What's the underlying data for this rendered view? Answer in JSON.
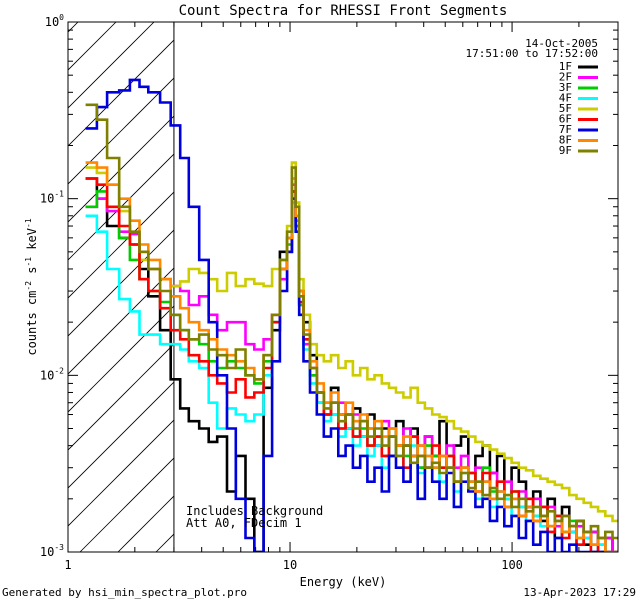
{
  "chart_data": {
    "type": "line",
    "title": "Count Spectra for RHESSI Front Segments",
    "xlabel": "Energy (keV)",
    "ylabel_parts": {
      "base": "counts cm",
      "exp1": "-2",
      "mid": " s",
      "exp2": "-1",
      "tail": " keV",
      "exp3": "-1"
    },
    "xscale": "log",
    "yscale": "log",
    "xlim": [
      1,
      300
    ],
    "ylim": [
      0.001,
      1
    ],
    "x_ticks": [
      {
        "v": 1,
        "label": "1"
      },
      {
        "v": 10,
        "label": "10"
      },
      {
        "v": 100,
        "label": "100"
      }
    ],
    "y_ticks": [
      {
        "v": 1,
        "base": "10",
        "exp": "0"
      },
      {
        "v": 0.1,
        "base": "10",
        "exp": "-1"
      },
      {
        "v": 0.01,
        "base": "10",
        "exp": "-2"
      },
      {
        "v": 0.001,
        "base": "10",
        "exp": "-3"
      }
    ],
    "date": "14-Oct-2005",
    "time_range": "17:51:00 to 17:52:00",
    "shaded_below_keV": 3,
    "annotations": [
      "Includes Background",
      "Att A0, FDecim 1"
    ],
    "footer_left": "Generated by hsi_min_spectra_plot.pro",
    "footer_right": "13-Apr-2023 17:29",
    "energy_edges_keV": [
      1.2,
      1.35,
      1.5,
      1.7,
      1.9,
      2.1,
      2.3,
      2.6,
      2.9,
      3.2,
      3.5,
      3.9,
      4.3,
      4.7,
      5.2,
      5.7,
      6.3,
      6.9,
      7.6,
      8.3,
      9.0,
      9.7,
      10.2,
      10.6,
      11.0,
      11.5,
      12.3,
      13.2,
      14.2,
      15.3,
      16.5,
      17.8,
      19.2,
      20.7,
      22.3,
      24.0,
      25.9,
      27.9,
      30.0,
      32.4,
      34.9,
      37.6,
      40.5,
      43.7,
      47.1,
      50.7,
      54.7,
      58.9,
      63.5,
      68.4,
      73.7,
      79.5,
      85.6,
      92.3,
      99.5,
      107.2,
      115.5,
      124.5,
      134.2,
      144.6,
      155.8,
      167.9,
      181.0,
      195.0,
      210.2,
      226.5,
      244.1,
      263.0,
      283.5,
      300.0
    ],
    "series": [
      {
        "name": "1F",
        "color": "#000000",
        "values": [
          0.13,
          0.1,
          0.07,
          0.06,
          0.055,
          0.04,
          0.028,
          0.018,
          0.0095,
          0.0065,
          0.0055,
          0.005,
          0.0042,
          0.0045,
          0.0022,
          0.0035,
          0.002,
          0.001,
          0.0085,
          0.018,
          0.05,
          0.06,
          0.11,
          0.08,
          0.03,
          0.02,
          0.013,
          0.007,
          0.006,
          0.0085,
          0.006,
          0.005,
          0.0065,
          0.0045,
          0.006,
          0.004,
          0.005,
          0.0035,
          0.0055,
          0.004,
          0.005,
          0.003,
          0.0045,
          0.0035,
          0.0055,
          0.003,
          0.004,
          0.0045,
          0.0025,
          0.0035,
          0.004,
          0.0028,
          0.0035,
          0.002,
          0.003,
          0.0025,
          0.0018,
          0.0022,
          0.0015,
          0.002,
          0.0012,
          0.0018,
          0.0013,
          0.0015,
          0.0011,
          0.0013,
          0.001,
          0.0012,
          0.001
        ]
      },
      {
        "name": "2F",
        "color": "#ff00ff",
        "values": [
          0.09,
          0.1,
          0.085,
          0.065,
          0.063,
          0.05,
          0.04,
          0.035,
          0.032,
          0.03,
          0.025,
          0.028,
          0.022,
          0.018,
          0.02,
          0.02,
          0.015,
          0.014,
          0.016,
          0.022,
          0.035,
          0.05,
          0.12,
          0.075,
          0.025,
          0.015,
          0.01,
          0.008,
          0.007,
          0.006,
          0.007,
          0.005,
          0.006,
          0.0045,
          0.005,
          0.004,
          0.0055,
          0.0045,
          0.004,
          0.005,
          0.0035,
          0.004,
          0.0045,
          0.003,
          0.0035,
          0.004,
          0.003,
          0.0035,
          0.0028,
          0.003,
          0.0025,
          0.0028,
          0.0022,
          0.0025,
          0.002,
          0.0022,
          0.0018,
          0.002,
          0.0016,
          0.0018,
          0.0014,
          0.0016,
          0.0013,
          0.0014,
          0.0012,
          0.0013,
          0.0011,
          0.0012,
          0.001
        ]
      },
      {
        "name": "3F",
        "color": "#00cc00",
        "values": [
          0.09,
          0.11,
          0.09,
          0.06,
          0.045,
          0.035,
          0.03,
          0.026,
          0.022,
          0.018,
          0.016,
          0.015,
          0.012,
          0.011,
          0.012,
          0.011,
          0.01,
          0.009,
          0.012,
          0.02,
          0.04,
          0.055,
          0.1,
          0.07,
          0.025,
          0.016,
          0.01,
          0.008,
          0.006,
          0.007,
          0.005,
          0.006,
          0.0045,
          0.005,
          0.004,
          0.0045,
          0.0035,
          0.005,
          0.004,
          0.0035,
          0.0045,
          0.003,
          0.004,
          0.0035,
          0.003,
          0.0035,
          0.0025,
          0.003,
          0.0028,
          0.0025,
          0.003,
          0.0022,
          0.0025,
          0.002,
          0.0022,
          0.0018,
          0.002,
          0.0016,
          0.0018,
          0.0014,
          0.0016,
          0.0013,
          0.0015,
          0.0012,
          0.0013,
          0.0011,
          0.0012,
          0.001,
          0.001
        ]
      },
      {
        "name": "4F",
        "color": "#00ffff",
        "values": [
          0.08,
          0.065,
          0.04,
          0.027,
          0.023,
          0.017,
          0.017,
          0.015,
          0.015,
          0.014,
          0.012,
          0.011,
          0.007,
          0.005,
          0.0065,
          0.006,
          0.0055,
          0.006,
          0.01,
          0.02,
          0.045,
          0.06,
          0.095,
          0.065,
          0.022,
          0.014,
          0.009,
          0.007,
          0.0055,
          0.006,
          0.0045,
          0.005,
          0.004,
          0.0045,
          0.0035,
          0.004,
          0.003,
          0.0045,
          0.0035,
          0.003,
          0.004,
          0.0028,
          0.0035,
          0.003,
          0.0025,
          0.003,
          0.0022,
          0.0028,
          0.0025,
          0.002,
          0.0025,
          0.0018,
          0.0022,
          0.002,
          0.0016,
          0.0018,
          0.0015,
          0.0016,
          0.0014,
          0.0013,
          0.0015,
          0.0012,
          0.0013,
          0.0011,
          0.0012,
          0.001,
          0.0011,
          0.001,
          0.001
        ]
      },
      {
        "name": "5F",
        "color": "#cccc00",
        "values": [
          0.15,
          0.14,
          0.12,
          0.085,
          0.055,
          0.045,
          0.04,
          0.035,
          0.032,
          0.034,
          0.04,
          0.038,
          0.035,
          0.03,
          0.038,
          0.032,
          0.035,
          0.033,
          0.032,
          0.04,
          0.045,
          0.07,
          0.16,
          0.095,
          0.035,
          0.022,
          0.015,
          0.013,
          0.012,
          0.013,
          0.011,
          0.012,
          0.01,
          0.011,
          0.0095,
          0.01,
          0.009,
          0.0085,
          0.008,
          0.0075,
          0.0085,
          0.007,
          0.0065,
          0.006,
          0.0058,
          0.0055,
          0.005,
          0.0048,
          0.0045,
          0.0042,
          0.004,
          0.0038,
          0.0036,
          0.0034,
          0.0032,
          0.003,
          0.0029,
          0.0027,
          0.0026,
          0.0025,
          0.0024,
          0.0023,
          0.0021,
          0.002,
          0.0019,
          0.0018,
          0.0017,
          0.0016,
          0.0015
        ]
      },
      {
        "name": "6F",
        "color": "#ff0000",
        "values": [
          0.13,
          0.12,
          0.09,
          0.07,
          0.055,
          0.035,
          0.03,
          0.024,
          0.018,
          0.016,
          0.013,
          0.012,
          0.01,
          0.009,
          0.008,
          0.0095,
          0.0075,
          0.008,
          0.011,
          0.02,
          0.04,
          0.05,
          0.11,
          0.07,
          0.026,
          0.016,
          0.011,
          0.008,
          0.006,
          0.007,
          0.005,
          0.006,
          0.0045,
          0.0055,
          0.004,
          0.0045,
          0.0035,
          0.0045,
          0.004,
          0.003,
          0.0045,
          0.0035,
          0.003,
          0.004,
          0.003,
          0.0035,
          0.0025,
          0.003,
          0.0028,
          0.0022,
          0.0028,
          0.002,
          0.0025,
          0.0018,
          0.0022,
          0.0016,
          0.002,
          0.0015,
          0.0018,
          0.0013,
          0.0016,
          0.0012,
          0.0014,
          0.0011,
          0.0013,
          0.001,
          0.0012,
          0.001,
          0.001
        ]
      },
      {
        "name": "7F",
        "color": "#0000dd",
        "values": [
          0.25,
          0.33,
          0.4,
          0.41,
          0.47,
          0.43,
          0.4,
          0.35,
          0.26,
          0.17,
          0.09,
          0.045,
          0.02,
          0.01,
          0.005,
          0.002,
          0.0012,
          0.001,
          0.0035,
          0.012,
          0.03,
          0.05,
          0.1,
          0.065,
          0.022,
          0.012,
          0.008,
          0.006,
          0.0045,
          0.005,
          0.0035,
          0.004,
          0.003,
          0.0035,
          0.0025,
          0.003,
          0.0022,
          0.0035,
          0.003,
          0.0025,
          0.0035,
          0.002,
          0.003,
          0.0025,
          0.002,
          0.0028,
          0.0018,
          0.0025,
          0.0022,
          0.0018,
          0.002,
          0.0015,
          0.0018,
          0.0014,
          0.0016,
          0.0012,
          0.0015,
          0.0011,
          0.0013,
          0.001,
          0.0012,
          0.001,
          0.0011,
          0.001,
          0.001,
          0.001,
          0.001,
          0.001,
          0.001
        ]
      },
      {
        "name": "8F",
        "color": "#ff8800",
        "values": [
          0.16,
          0.15,
          0.12,
          0.1,
          0.075,
          0.055,
          0.045,
          0.035,
          0.028,
          0.024,
          0.02,
          0.018,
          0.016,
          0.014,
          0.013,
          0.012,
          0.011,
          0.0095,
          0.013,
          0.022,
          0.04,
          0.06,
          0.13,
          0.08,
          0.03,
          0.018,
          0.012,
          0.009,
          0.007,
          0.008,
          0.006,
          0.007,
          0.0055,
          0.006,
          0.005,
          0.0055,
          0.0045,
          0.005,
          0.004,
          0.0045,
          0.0035,
          0.004,
          0.0035,
          0.003,
          0.0035,
          0.003,
          0.0025,
          0.003,
          0.0025,
          0.0022,
          0.0025,
          0.002,
          0.0022,
          0.0018,
          0.002,
          0.0016,
          0.0018,
          0.0015,
          0.0016,
          0.0014,
          0.0015,
          0.0013,
          0.0014,
          0.0012,
          0.0013,
          0.0011,
          0.0012,
          0.001,
          0.001
        ]
      },
      {
        "name": "9F",
        "color": "#808000",
        "values": [
          0.34,
          0.28,
          0.17,
          0.09,
          0.065,
          0.05,
          0.04,
          0.03,
          0.022,
          0.018,
          0.016,
          0.017,
          0.014,
          0.013,
          0.011,
          0.014,
          0.01,
          0.0095,
          0.013,
          0.022,
          0.045,
          0.065,
          0.15,
          0.09,
          0.028,
          0.017,
          0.011,
          0.008,
          0.0065,
          0.007,
          0.0055,
          0.006,
          0.005,
          0.0055,
          0.0045,
          0.005,
          0.004,
          0.0045,
          0.0035,
          0.004,
          0.0032,
          0.0035,
          0.003,
          0.0032,
          0.0028,
          0.003,
          0.0025,
          0.0028,
          0.0023,
          0.0025,
          0.0021,
          0.0023,
          0.002,
          0.0021,
          0.0018,
          0.002,
          0.0017,
          0.0018,
          0.0016,
          0.0017,
          0.0015,
          0.0016,
          0.0014,
          0.0015,
          0.0013,
          0.0014,
          0.0012,
          0.0013,
          0.0012
        ]
      }
    ]
  }
}
